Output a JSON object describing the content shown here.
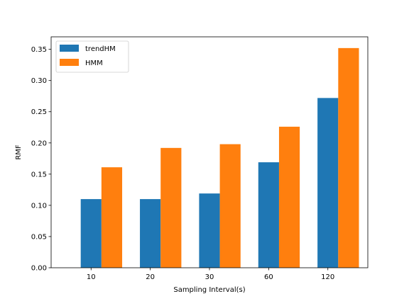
{
  "chart_data": {
    "type": "bar",
    "xlabel": "Sampling Interval(s)",
    "ylabel": "RMF",
    "categories": [
      "10",
      "20",
      "30",
      "60",
      "120"
    ],
    "series": [
      {
        "name": "trendHM",
        "color": "#1f77b4",
        "values": [
          0.11,
          0.11,
          0.119,
          0.169,
          0.272
        ]
      },
      {
        "name": "HMM",
        "color": "#ff7f0e",
        "values": [
          0.161,
          0.192,
          0.198,
          0.226,
          0.352
        ]
      }
    ],
    "ylim": [
      0.0,
      0.37
    ],
    "yticks": [
      "0.00",
      "0.05",
      "0.10",
      "0.15",
      "0.20",
      "0.25",
      "0.30",
      "0.35"
    ],
    "grid": false,
    "legend_position": "top-left"
  }
}
